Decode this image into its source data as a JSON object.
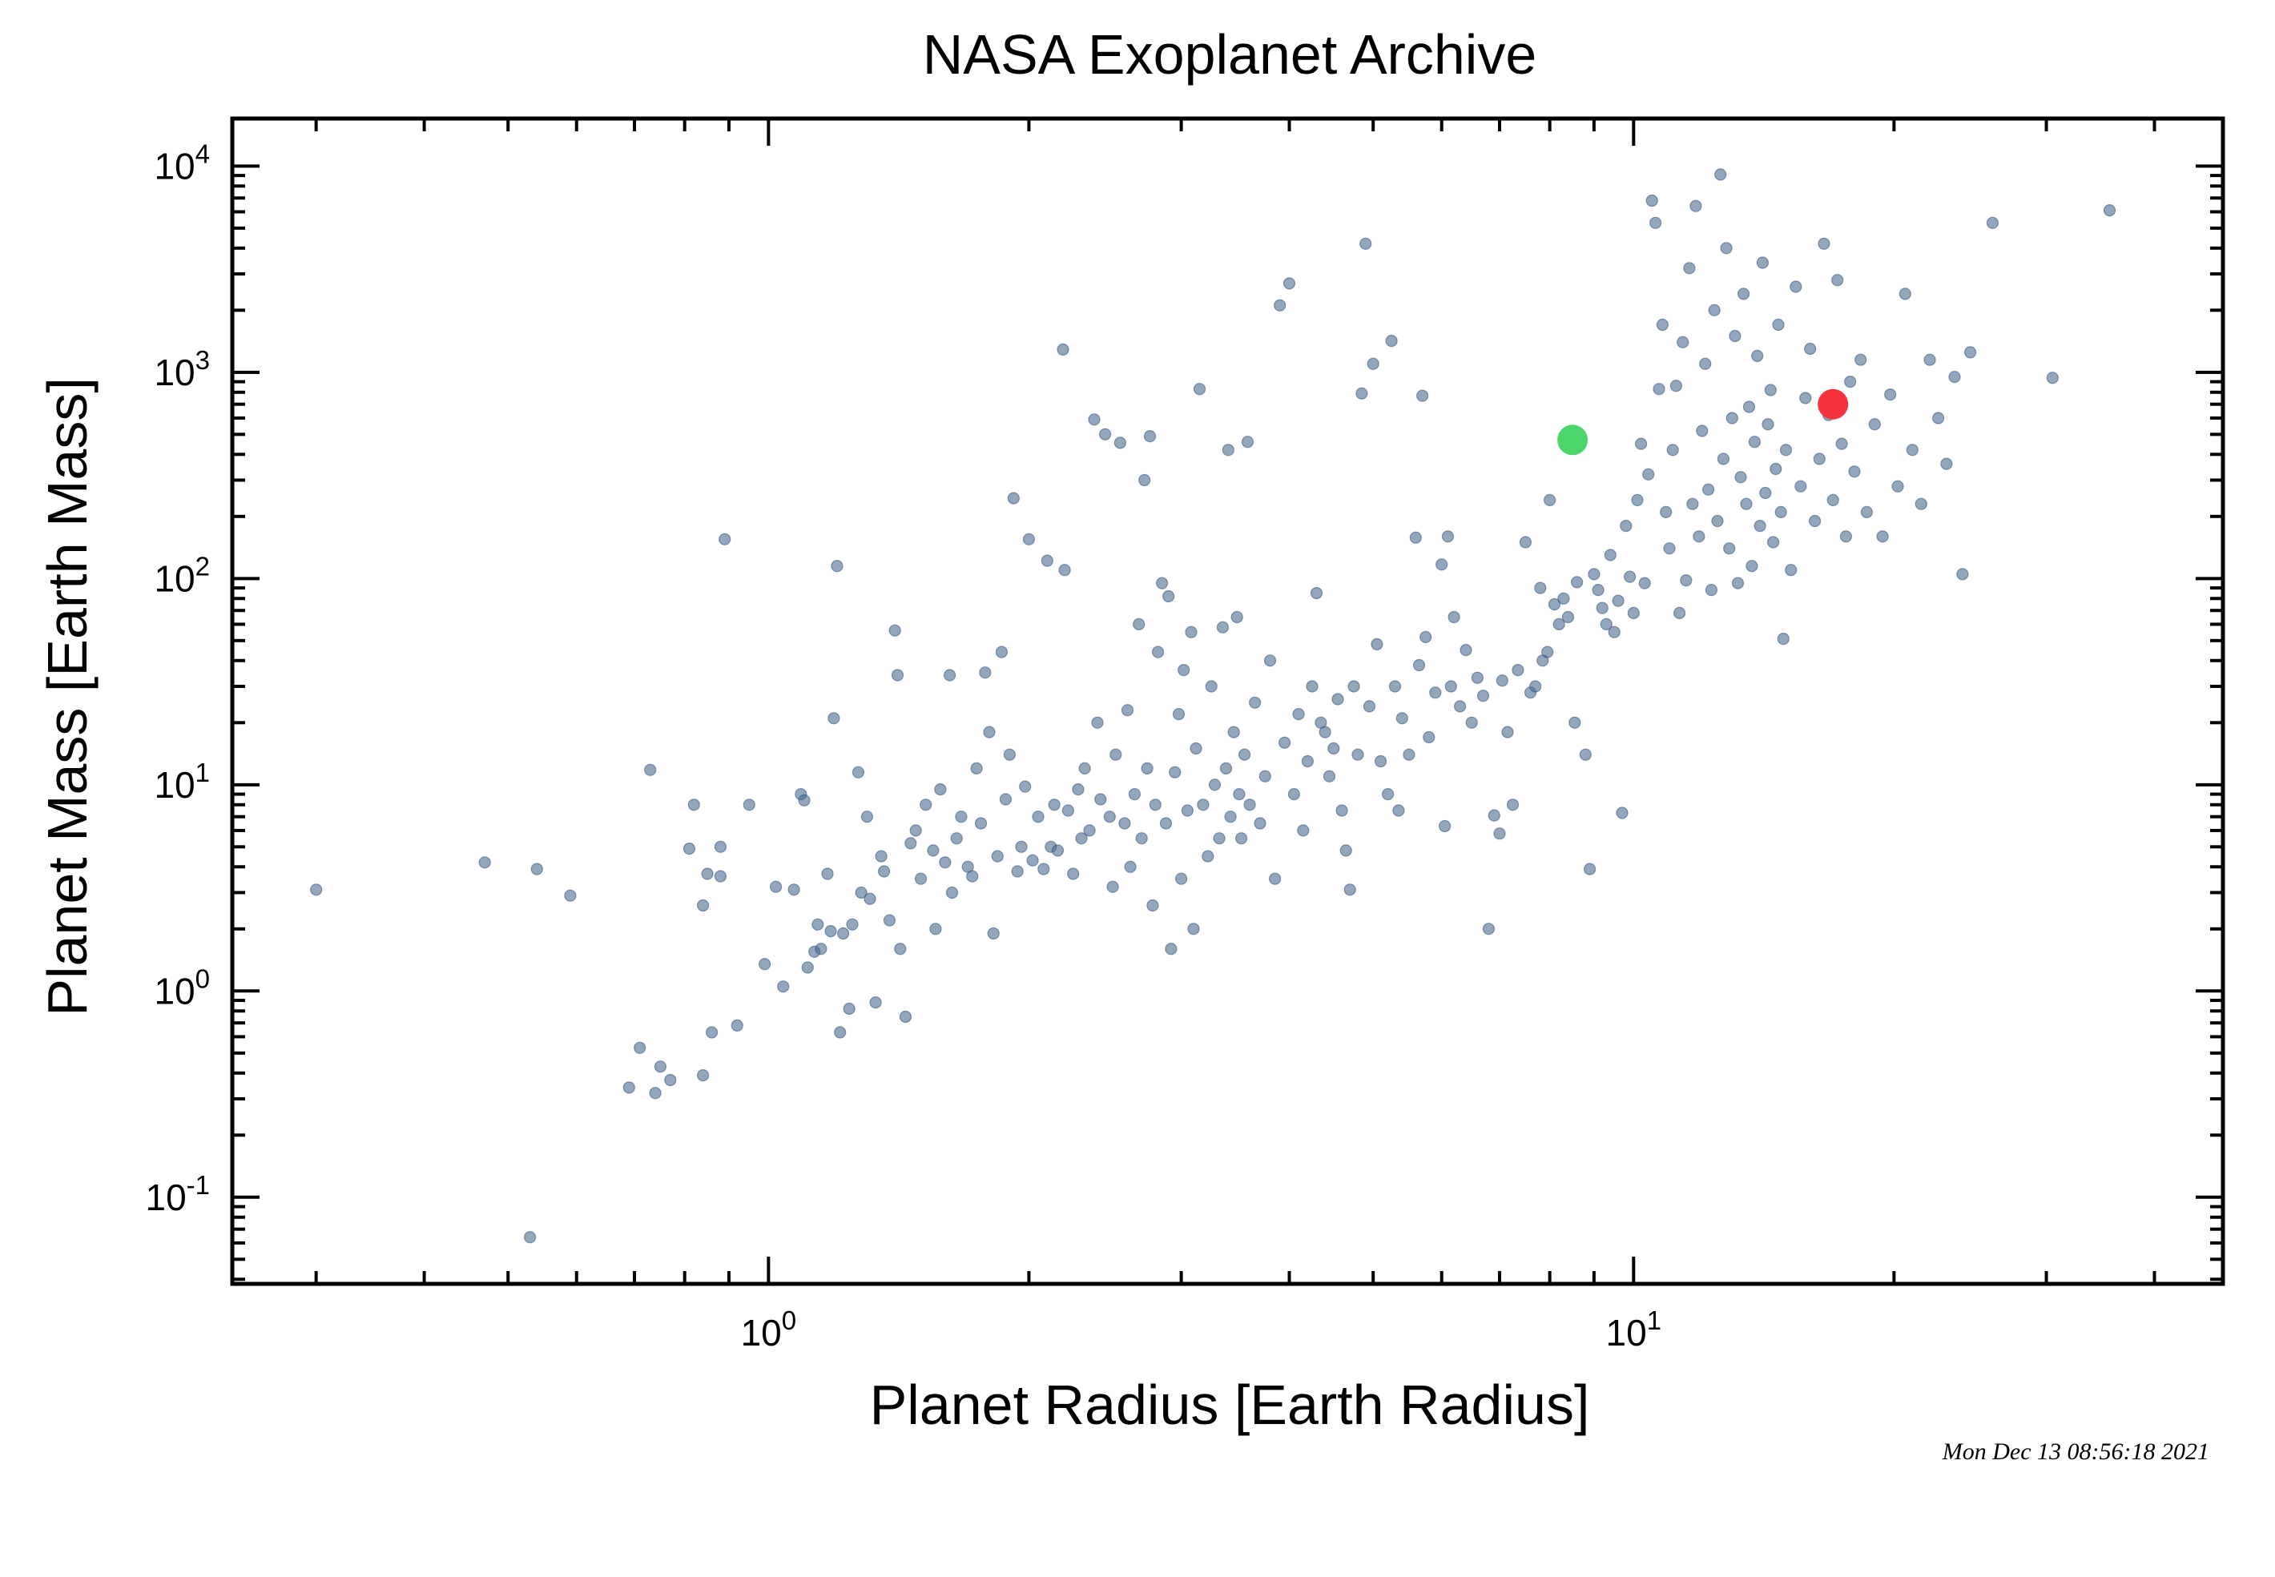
{
  "chart_data": {
    "type": "scatter",
    "title": "NASA Exoplanet Archive",
    "xlabel": "Planet Radius [Earth Radius]",
    "ylabel": "Planet Mass [Earth Mass]",
    "x_scale": "log",
    "y_scale": "log",
    "xlim": [
      0.24,
      48
    ],
    "ylim": [
      0.038,
      17000
    ],
    "x_ticks": [
      {
        "base": "10",
        "exp": "0",
        "value": 1
      },
      {
        "base": "10",
        "exp": "1",
        "value": 10
      }
    ],
    "y_ticks": [
      {
        "base": "10",
        "exp": "-1",
        "value": 0.1
      },
      {
        "base": "10",
        "exp": "0",
        "value": 1
      },
      {
        "base": "10",
        "exp": "1",
        "value": 10
      },
      {
        "base": "10",
        "exp": "2",
        "value": 100
      },
      {
        "base": "10",
        "exp": "3",
        "value": 1000
      },
      {
        "base": "10",
        "exp": "4",
        "value": 10000
      }
    ],
    "grid": false,
    "timestamp": "Mon Dec 13 08:56:18 2021",
    "colors": {
      "points": "#4a6a90",
      "highlight_green": "#4cd66a",
      "highlight_red": "#f5333f"
    },
    "highlights": [
      {
        "color": "green",
        "x": 8.5,
        "y": 470
      },
      {
        "color": "red",
        "x": 17,
        "y": 700
      }
    ],
    "points": [
      [
        0.3,
        3.1
      ],
      [
        0.47,
        4.2
      ],
      [
        0.53,
        0.064
      ],
      [
        0.54,
        3.9
      ],
      [
        0.59,
        2.9
      ],
      [
        0.69,
        0.34
      ],
      [
        0.71,
        0.53
      ],
      [
        0.73,
        11.8
      ],
      [
        0.74,
        0.32
      ],
      [
        0.75,
        0.43
      ],
      [
        0.77,
        0.37
      ],
      [
        0.81,
        4.9
      ],
      [
        0.82,
        8.0
      ],
      [
        0.84,
        0.39
      ],
      [
        0.84,
        2.6
      ],
      [
        0.85,
        3.7
      ],
      [
        0.86,
        0.63
      ],
      [
        0.88,
        5.0
      ],
      [
        0.88,
        3.6
      ],
      [
        0.89,
        155
      ],
      [
        0.92,
        0.68
      ],
      [
        0.95,
        8.0
      ],
      [
        0.99,
        1.35
      ],
      [
        1.02,
        3.2
      ],
      [
        1.04,
        1.05
      ],
      [
        1.07,
        3.1
      ],
      [
        1.09,
        9.0
      ],
      [
        1.1,
        8.4
      ],
      [
        1.11,
        1.3
      ],
      [
        1.13,
        1.55
      ],
      [
        1.14,
        2.1
      ],
      [
        1.15,
        1.6
      ],
      [
        1.17,
        3.7
      ],
      [
        1.18,
        1.95
      ],
      [
        1.19,
        21
      ],
      [
        1.2,
        115
      ],
      [
        1.21,
        0.63
      ],
      [
        1.22,
        1.9
      ],
      [
        1.24,
        0.82
      ],
      [
        1.25,
        2.1
      ],
      [
        1.27,
        11.5
      ],
      [
        1.28,
        3.0
      ],
      [
        1.3,
        7.0
      ],
      [
        1.31,
        2.8
      ],
      [
        1.33,
        0.88
      ],
      [
        1.35,
        4.5
      ],
      [
        1.36,
        3.8
      ],
      [
        1.38,
        2.2
      ],
      [
        1.4,
        56
      ],
      [
        1.41,
        34
      ],
      [
        1.42,
        1.6
      ],
      [
        1.44,
        0.75
      ],
      [
        1.46,
        5.2
      ],
      [
        1.48,
        6.0
      ],
      [
        1.5,
        3.5
      ],
      [
        1.52,
        8.0
      ],
      [
        1.55,
        4.8
      ],
      [
        1.56,
        2.0
      ],
      [
        1.58,
        9.5
      ],
      [
        1.6,
        4.2
      ],
      [
        1.62,
        34
      ],
      [
        1.63,
        3.0
      ],
      [
        1.65,
        5.5
      ],
      [
        1.67,
        7.0
      ],
      [
        1.7,
        4.0
      ],
      [
        1.72,
        3.6
      ],
      [
        1.74,
        12
      ],
      [
        1.76,
        6.5
      ],
      [
        1.78,
        35
      ],
      [
        1.8,
        18
      ],
      [
        1.82,
        1.9
      ],
      [
        1.84,
        4.5
      ],
      [
        1.86,
        44
      ],
      [
        1.88,
        8.5
      ],
      [
        1.9,
        14
      ],
      [
        1.92,
        245
      ],
      [
        1.94,
        3.8
      ],
      [
        1.96,
        5.0
      ],
      [
        1.98,
        9.8
      ],
      [
        2.0,
        155
      ],
      [
        2.02,
        4.3
      ],
      [
        2.05,
        7.0
      ],
      [
        2.08,
        3.9
      ],
      [
        2.1,
        122
      ],
      [
        2.12,
        5.0
      ],
      [
        2.14,
        8.0
      ],
      [
        2.16,
        4.8
      ],
      [
        2.19,
        1290
      ],
      [
        2.2,
        110
      ],
      [
        2.22,
        7.5
      ],
      [
        2.25,
        3.7
      ],
      [
        2.28,
        9.5
      ],
      [
        2.3,
        5.5
      ],
      [
        2.32,
        12
      ],
      [
        2.35,
        6.0
      ],
      [
        2.38,
        590
      ],
      [
        2.4,
        20
      ],
      [
        2.42,
        8.5
      ],
      [
        2.45,
        500
      ],
      [
        2.48,
        7.0
      ],
      [
        2.5,
        3.2
      ],
      [
        2.52,
        14
      ],
      [
        2.55,
        455
      ],
      [
        2.58,
        6.5
      ],
      [
        2.6,
        23
      ],
      [
        2.62,
        4.0
      ],
      [
        2.65,
        9.0
      ],
      [
        2.68,
        60
      ],
      [
        2.7,
        5.5
      ],
      [
        2.72,
        300
      ],
      [
        2.74,
        12
      ],
      [
        2.76,
        490
      ],
      [
        2.78,
        2.6
      ],
      [
        2.8,
        8.0
      ],
      [
        2.82,
        44
      ],
      [
        2.85,
        95
      ],
      [
        2.88,
        6.5
      ],
      [
        2.9,
        82
      ],
      [
        2.92,
        1.6
      ],
      [
        2.95,
        11.5
      ],
      [
        2.98,
        22
      ],
      [
        3.0,
        3.5
      ],
      [
        3.02,
        36
      ],
      [
        3.05,
        7.5
      ],
      [
        3.08,
        55
      ],
      [
        3.1,
        2.0
      ],
      [
        3.12,
        15
      ],
      [
        3.15,
        830
      ],
      [
        3.18,
        8.0
      ],
      [
        3.22,
        4.5
      ],
      [
        3.25,
        30
      ],
      [
        3.28,
        10
      ],
      [
        3.32,
        5.5
      ],
      [
        3.35,
        58
      ],
      [
        3.38,
        12
      ],
      [
        3.4,
        420
      ],
      [
        3.42,
        7.0
      ],
      [
        3.45,
        18
      ],
      [
        3.48,
        65
      ],
      [
        3.5,
        9.0
      ],
      [
        3.52,
        5.5
      ],
      [
        3.55,
        14
      ],
      [
        3.58,
        460
      ],
      [
        3.6,
        8.0
      ],
      [
        3.65,
        25
      ],
      [
        3.7,
        6.5
      ],
      [
        3.75,
        11
      ],
      [
        3.8,
        40
      ],
      [
        3.85,
        3.5
      ],
      [
        3.9,
        2110
      ],
      [
        3.95,
        16
      ],
      [
        4.0,
        2700
      ],
      [
        4.05,
        9.0
      ],
      [
        4.1,
        22
      ],
      [
        4.15,
        6.0
      ],
      [
        4.2,
        13
      ],
      [
        4.25,
        30
      ],
      [
        4.3,
        85
      ],
      [
        4.35,
        20
      ],
      [
        4.4,
        18
      ],
      [
        4.45,
        11
      ],
      [
        4.5,
        15
      ],
      [
        4.55,
        26
      ],
      [
        4.6,
        7.5
      ],
      [
        4.65,
        4.8
      ],
      [
        4.7,
        3.1
      ],
      [
        4.75,
        30
      ],
      [
        4.8,
        14
      ],
      [
        4.85,
        790
      ],
      [
        4.9,
        4200
      ],
      [
        4.95,
        24
      ],
      [
        5.0,
        1100
      ],
      [
        5.05,
        48
      ],
      [
        5.1,
        13
      ],
      [
        5.2,
        9.0
      ],
      [
        5.25,
        1420
      ],
      [
        5.3,
        30
      ],
      [
        5.35,
        7.5
      ],
      [
        5.4,
        21
      ],
      [
        5.5,
        14
      ],
      [
        5.6,
        158
      ],
      [
        5.65,
        38
      ],
      [
        5.7,
        770
      ],
      [
        5.75,
        52
      ],
      [
        5.8,
        17
      ],
      [
        5.9,
        28
      ],
      [
        6.0,
        117
      ],
      [
        6.05,
        6.3
      ],
      [
        6.1,
        160
      ],
      [
        6.15,
        30
      ],
      [
        6.2,
        65
      ],
      [
        6.3,
        24
      ],
      [
        6.4,
        45
      ],
      [
        6.5,
        20
      ],
      [
        6.6,
        33
      ],
      [
        6.7,
        27
      ],
      [
        6.8,
        2.0
      ],
      [
        6.9,
        7.1
      ],
      [
        7.0,
        5.8
      ],
      [
        7.05,
        32
      ],
      [
        7.15,
        18
      ],
      [
        7.25,
        8.0
      ],
      [
        7.35,
        36
      ],
      [
        7.5,
        150
      ],
      [
        7.6,
        28
      ],
      [
        7.7,
        30
      ],
      [
        7.8,
        90
      ],
      [
        7.85,
        40
      ],
      [
        7.95,
        44
      ],
      [
        8.0,
        240
      ],
      [
        8.1,
        75
      ],
      [
        8.2,
        60
      ],
      [
        8.3,
        80
      ],
      [
        8.4,
        65
      ],
      [
        8.55,
        20
      ],
      [
        8.6,
        96
      ],
      [
        8.7,
        470
      ],
      [
        8.8,
        14
      ],
      [
        8.9,
        3.9
      ],
      [
        9.0,
        105
      ],
      [
        9.1,
        88
      ],
      [
        9.2,
        72
      ],
      [
        9.3,
        60
      ],
      [
        9.4,
        130
      ],
      [
        9.5,
        55
      ],
      [
        9.6,
        78
      ],
      [
        9.7,
        7.3
      ],
      [
        9.8,
        180
      ],
      [
        9.9,
        102
      ],
      [
        10.0,
        68
      ],
      [
        10.1,
        240
      ],
      [
        10.2,
        450
      ],
      [
        10.3,
        95
      ],
      [
        10.4,
        320
      ],
      [
        10.5,
        6800
      ],
      [
        10.6,
        5300
      ],
      [
        10.7,
        830
      ],
      [
        10.8,
        1700
      ],
      [
        10.9,
        210
      ],
      [
        11.0,
        140
      ],
      [
        11.1,
        420
      ],
      [
        11.2,
        860
      ],
      [
        11.3,
        68
      ],
      [
        11.4,
        1400
      ],
      [
        11.5,
        98
      ],
      [
        11.6,
        3200
      ],
      [
        11.7,
        230
      ],
      [
        11.8,
        6400
      ],
      [
        11.9,
        160
      ],
      [
        12.0,
        520
      ],
      [
        12.1,
        1100
      ],
      [
        12.2,
        270
      ],
      [
        12.3,
        88
      ],
      [
        12.4,
        2000
      ],
      [
        12.5,
        190
      ],
      [
        12.6,
        9100
      ],
      [
        12.7,
        380
      ],
      [
        12.8,
        4000
      ],
      [
        12.9,
        140
      ],
      [
        13.0,
        600
      ],
      [
        13.1,
        1500
      ],
      [
        13.2,
        95
      ],
      [
        13.3,
        310
      ],
      [
        13.4,
        2400
      ],
      [
        13.5,
        230
      ],
      [
        13.6,
        680
      ],
      [
        13.7,
        115
      ],
      [
        13.8,
        460
      ],
      [
        13.9,
        1200
      ],
      [
        14.0,
        180
      ],
      [
        14.1,
        3400
      ],
      [
        14.2,
        260
      ],
      [
        14.3,
        560
      ],
      [
        14.4,
        820
      ],
      [
        14.5,
        150
      ],
      [
        14.6,
        340
      ],
      [
        14.7,
        1700
      ],
      [
        14.8,
        210
      ],
      [
        14.9,
        51
      ],
      [
        15.0,
        420
      ],
      [
        15.2,
        110
      ],
      [
        15.4,
        2600
      ],
      [
        15.6,
        280
      ],
      [
        15.8,
        750
      ],
      [
        16.0,
        1300
      ],
      [
        16.2,
        190
      ],
      [
        16.4,
        380
      ],
      [
        16.6,
        4200
      ],
      [
        16.8,
        620
      ],
      [
        17.0,
        240
      ],
      [
        17.2,
        2800
      ],
      [
        17.4,
        450
      ],
      [
        17.6,
        160
      ],
      [
        17.8,
        900
      ],
      [
        18.0,
        330
      ],
      [
        18.3,
        1150
      ],
      [
        18.6,
        210
      ],
      [
        19.0,
        560
      ],
      [
        19.4,
        160
      ],
      [
        19.8,
        780
      ],
      [
        20.2,
        280
      ],
      [
        20.6,
        2400
      ],
      [
        21.0,
        420
      ],
      [
        21.5,
        230
      ],
      [
        22.0,
        1150
      ],
      [
        22.5,
        600
      ],
      [
        23.0,
        360
      ],
      [
        23.5,
        950
      ],
      [
        24.0,
        105
      ],
      [
        24.5,
        1250
      ],
      [
        26.0,
        5300
      ],
      [
        30.5,
        940
      ],
      [
        35.5,
        6100
      ]
    ]
  }
}
